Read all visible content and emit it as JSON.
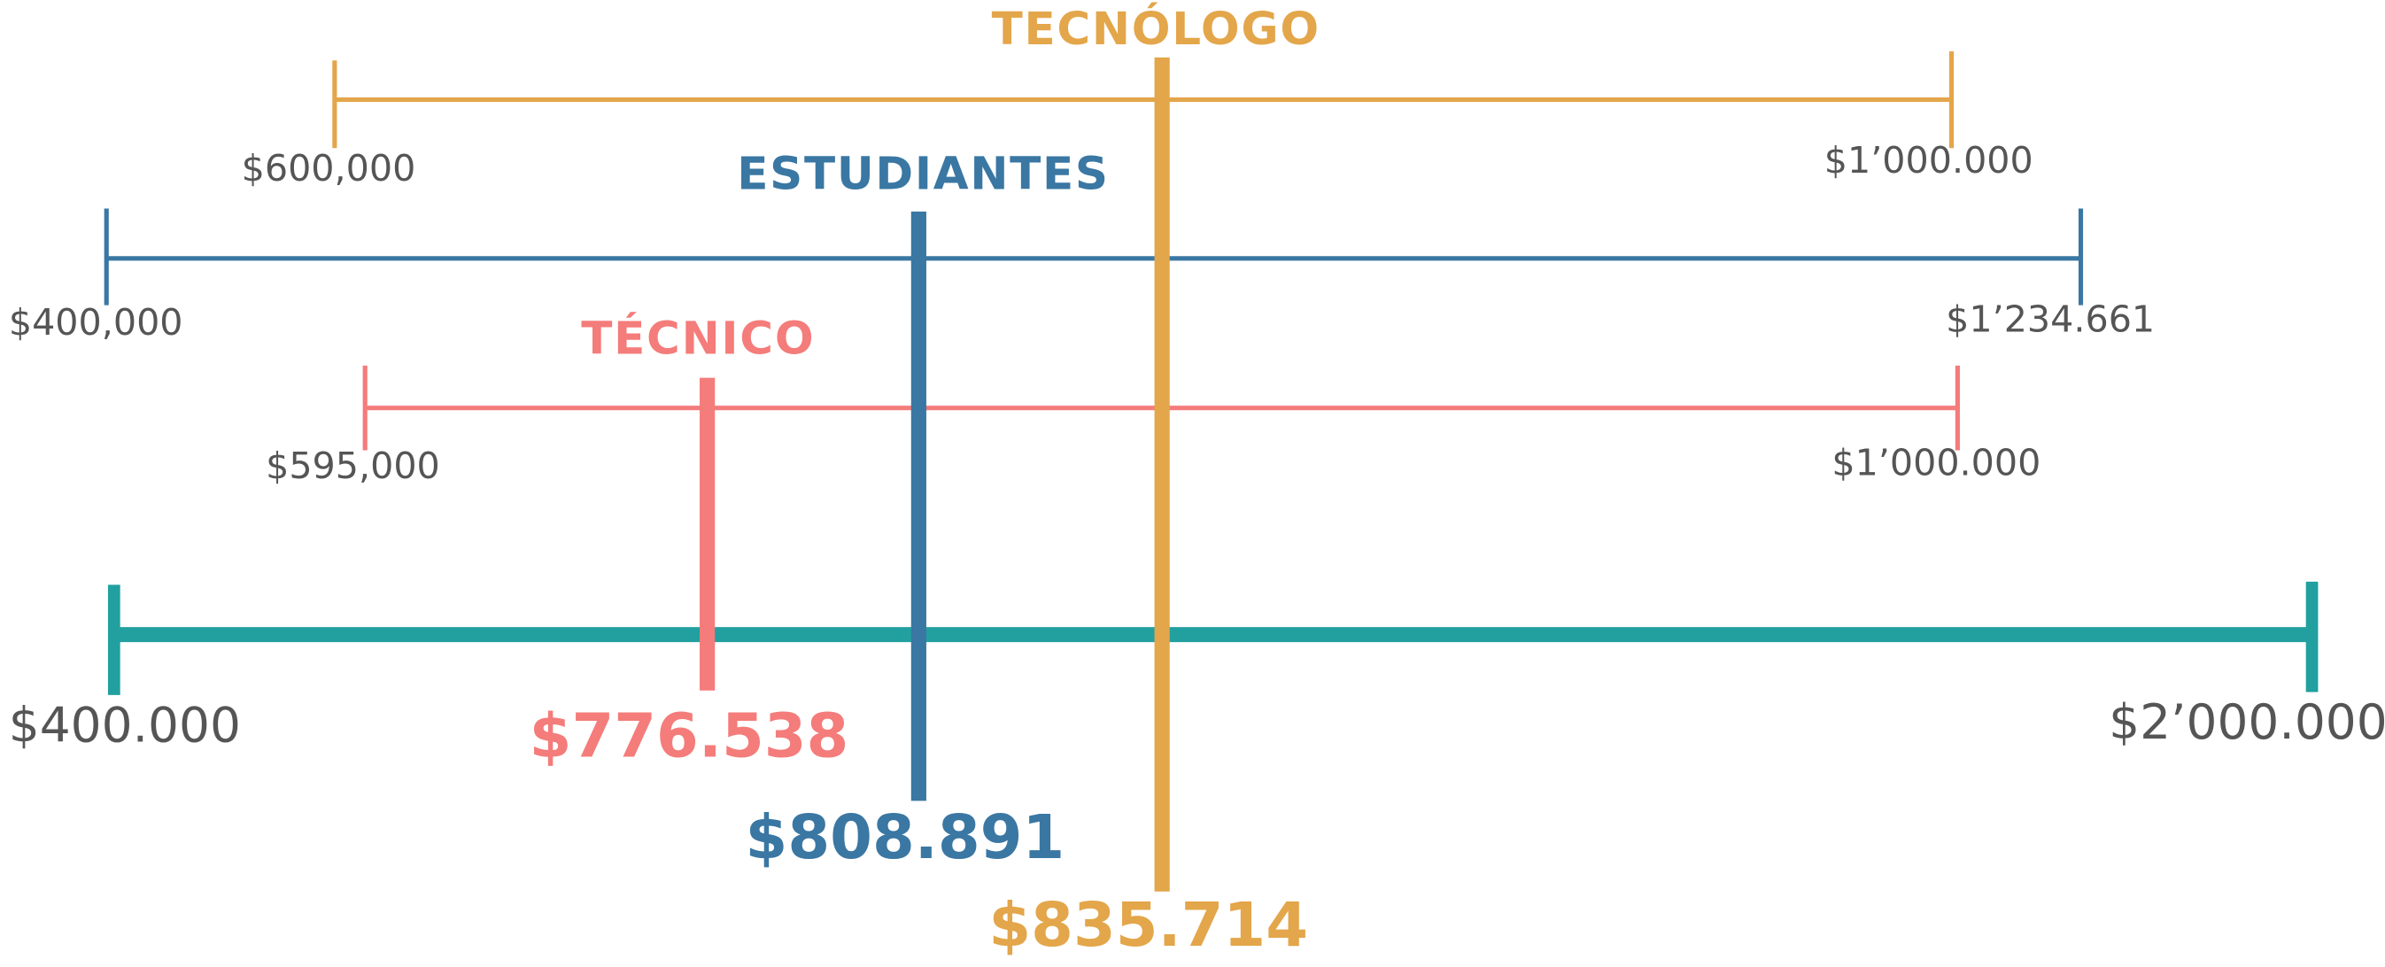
{
  "axis": {
    "min_label": "$400.000",
    "max_label": "$2’000.000"
  },
  "groups": [
    {
      "name": "TECNÓLOGO",
      "min_label": "$600,000",
      "max_label": "$1’000.000",
      "median_label": "$835.714"
    },
    {
      "name": "ESTUDIANTES",
      "min_label": "$400,000",
      "max_label": "$1’234.661",
      "median_label": "$808.891"
    },
    {
      "name": "TÉCNICO",
      "min_label": "$595,000",
      "max_label": "$1’000.000",
      "median_label": "$776.538"
    }
  ]
}
